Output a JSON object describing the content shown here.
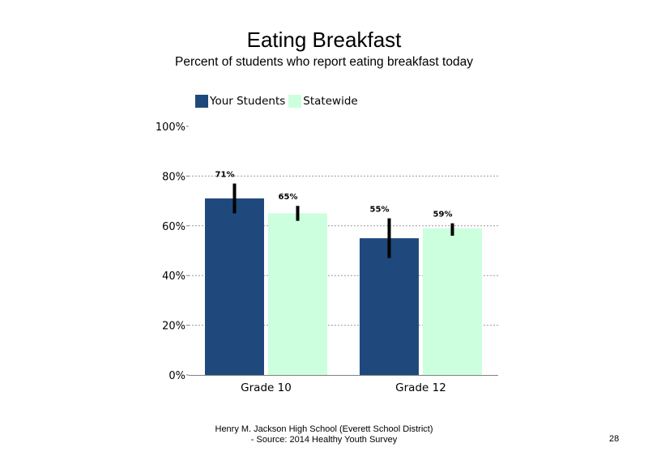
{
  "chart_data": {
    "type": "bar",
    "title": "Eating Breakfast",
    "subtitle": "Percent of students who report eating breakfast today",
    "categories": [
      "Grade 10",
      "Grade 12"
    ],
    "series": [
      {
        "name": "Your Students",
        "values": [
          71,
          55
        ],
        "error_low": [
          65,
          47
        ],
        "error_high": [
          77,
          63
        ],
        "color": "#1f497d"
      },
      {
        "name": "Statewide",
        "values": [
          65,
          59
        ],
        "error_low": [
          62,
          56
        ],
        "error_high": [
          68,
          61
        ],
        "color": "#ccffdd"
      }
    ],
    "data_labels": [
      [
        "71%",
        "55%"
      ],
      [
        "65%",
        "59%"
      ]
    ],
    "y_ticks": [
      "0%",
      "20%",
      "40%",
      "60%",
      "80%",
      "100%"
    ],
    "y_tick_values": [
      0,
      20,
      40,
      60,
      80,
      100
    ],
    "ylim": [
      0,
      100
    ],
    "grid": "dotted horizontal",
    "legend_position": "top-left"
  },
  "footer": {
    "line1": "Henry M. Jackson High School (Everett School District)",
    "line2": "- Source: 2014 Healthy Youth Survey"
  },
  "page_number": "28"
}
